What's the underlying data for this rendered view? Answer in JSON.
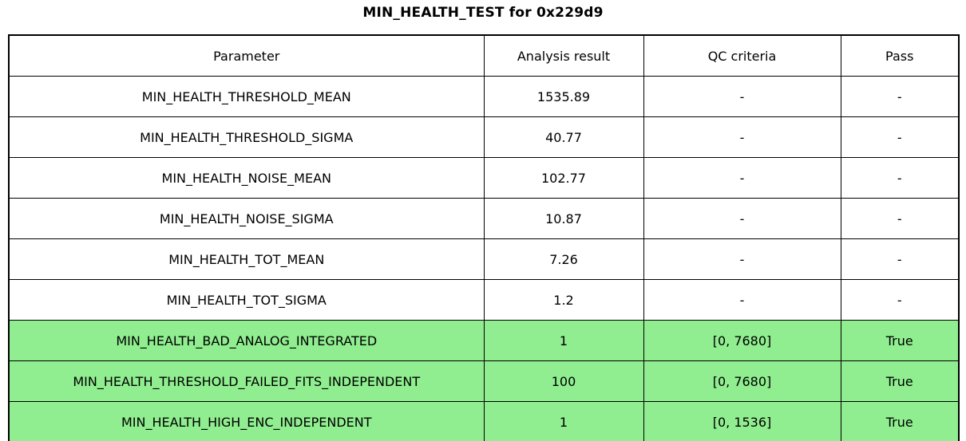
{
  "title": "MIN_HEALTH_TEST for 0x229d9",
  "chart_data": {
    "type": "table",
    "title": "MIN_HEALTH_TEST for 0x229d9",
    "columns": [
      "Parameter",
      "Analysis result",
      "QC criteria",
      "Pass"
    ],
    "rows": [
      {
        "parameter": "MIN_HEALTH_THRESHOLD_MEAN",
        "result": "1535.89",
        "qc_criteria": "-",
        "pass": "-",
        "highlighted": false
      },
      {
        "parameter": "MIN_HEALTH_THRESHOLD_SIGMA",
        "result": "40.77",
        "qc_criteria": "-",
        "pass": "-",
        "highlighted": false
      },
      {
        "parameter": "MIN_HEALTH_NOISE_MEAN",
        "result": "102.77",
        "qc_criteria": "-",
        "pass": "-",
        "highlighted": false
      },
      {
        "parameter": "MIN_HEALTH_NOISE_SIGMA",
        "result": "10.87",
        "qc_criteria": "-",
        "pass": "-",
        "highlighted": false
      },
      {
        "parameter": "MIN_HEALTH_TOT_MEAN",
        "result": "7.26",
        "qc_criteria": "-",
        "pass": "-",
        "highlighted": false
      },
      {
        "parameter": "MIN_HEALTH_TOT_SIGMA",
        "result": "1.2",
        "qc_criteria": "-",
        "pass": "-",
        "highlighted": false
      },
      {
        "parameter": "MIN_HEALTH_BAD_ANALOG_INTEGRATED",
        "result": "1",
        "qc_criteria": "[0, 7680]",
        "pass": "True",
        "highlighted": true
      },
      {
        "parameter": "MIN_HEALTH_THRESHOLD_FAILED_FITS_INDEPENDENT",
        "result": "100",
        "qc_criteria": "[0, 7680]",
        "pass": "True",
        "highlighted": true
      },
      {
        "parameter": "MIN_HEALTH_HIGH_ENC_INDEPENDENT",
        "result": "1",
        "qc_criteria": "[0, 1536]",
        "pass": "True",
        "highlighted": true
      }
    ],
    "colors": {
      "pass_row_background": "#90ee90",
      "border": "#000000",
      "background": "#ffffff",
      "text": "#000000"
    },
    "layout": {
      "legend": "none",
      "grid": "full-cell-borders",
      "title_position": "top-center"
    }
  }
}
